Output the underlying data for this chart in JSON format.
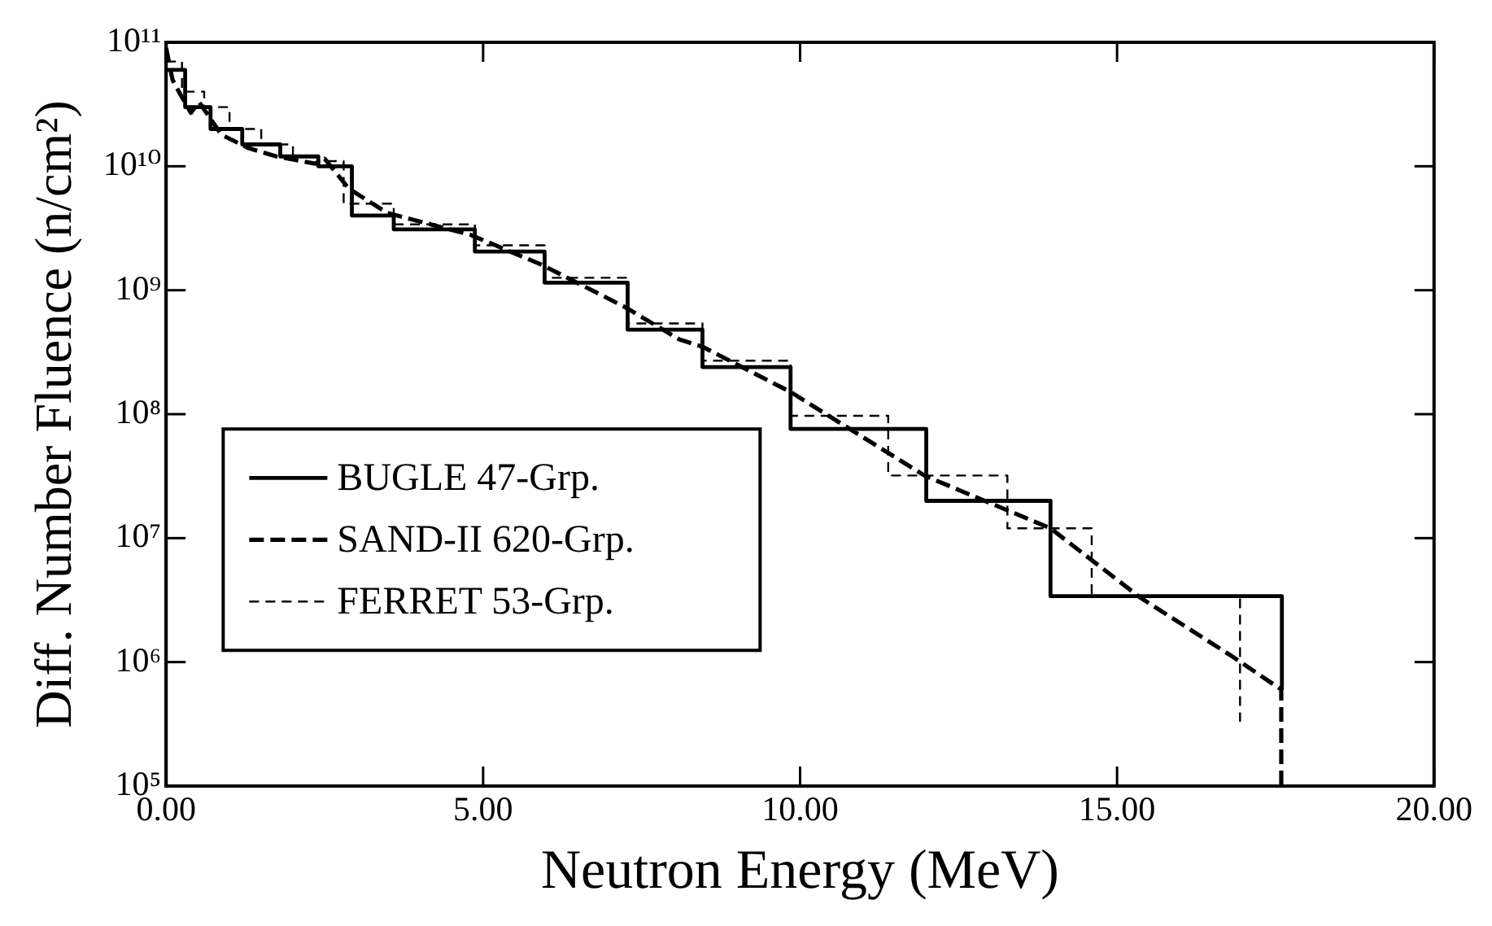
{
  "chart_data": {
    "type": "line",
    "xlabel": "Neutron Energy (MeV)",
    "ylabel": "Diff. Number Fluence (n/cm²)",
    "xlim": [
      0,
      20
    ],
    "xticks": [
      {
        "value": 0,
        "label": "0.00"
      },
      {
        "value": 5,
        "label": "5.00"
      },
      {
        "value": 10,
        "label": "10.00"
      },
      {
        "value": 15,
        "label": "15.00"
      },
      {
        "value": 20,
        "label": "20.00"
      }
    ],
    "ylim": [
      100000,
      100000000000
    ],
    "yticks": [
      {
        "value": 100000,
        "label": "10⁵"
      },
      {
        "value": 1000000,
        "label": "10⁶"
      },
      {
        "value": 10000000,
        "label": "10⁷"
      },
      {
        "value": 100000000,
        "label": "10⁸"
      },
      {
        "value": 1000000000,
        "label": "10⁹"
      },
      {
        "value": 10000000000,
        "label": "10¹⁰"
      },
      {
        "value": 100000000000,
        "label": "10¹¹"
      }
    ],
    "log": "y",
    "grid": false,
    "legend": "left",
    "marker": "none",
    "series": [
      {
        "name": "BUGLE 47-Grp.",
        "type": "step",
        "line_style": "solid",
        "color": "#000000",
        "x": [
          0,
          0.3,
          0.7,
          1.2,
          1.8,
          2.4,
          2.93,
          3.59,
          4.87,
          5.97,
          7.28,
          8.46,
          9.85,
          11.99,
          13.95,
          17.6,
          17.6
        ],
        "values": [
          60000000000,
          30000000000,
          20000000000,
          15000000000,
          12000000000,
          10000000000,
          4000000000,
          3100000000,
          2050000000,
          1150000000,
          480000000,
          240000000,
          76000000,
          20000000,
          3400000,
          3400000,
          600000
        ]
      },
      {
        "name": "SAND-II 620-Grp.",
        "type": "line",
        "line_style": "dashed",
        "color": "#000000",
        "x": [
          0,
          0.1,
          0.2,
          0.39,
          0.52,
          0.87,
          1.3,
          1.74,
          2.35,
          2.5,
          2.88,
          3.49,
          4.8,
          5.93,
          7.24,
          8.1,
          8.46,
          9.86,
          11.96,
          13.95,
          15.37,
          16.83,
          17.59,
          17.59
        ],
        "values": [
          90000000000,
          50000000000,
          40000000000,
          27000000000,
          33000000000,
          18000000000,
          14000000000,
          12000000000,
          10500000000,
          11500000000,
          6600000000,
          4200000000,
          2800000000,
          1600000000,
          730000000,
          400000000,
          350000000,
          150000000,
          32000000,
          12000000,
          3300000,
          1100000,
          600000,
          100000
        ]
      },
      {
        "name": "FERRET 53-Grp.",
        "type": "step",
        "line_style": "dashed",
        "color": "#000000",
        "x": [
          0,
          0.25,
          0.6,
          1,
          1.5,
          2,
          2.4,
          2.8,
          3.59,
          4.87,
          5.97,
          7.28,
          8.46,
          9.85,
          11.39,
          13.27,
          14.6,
          16.94,
          16.94
        ],
        "values": [
          70000000000,
          40000000000,
          30000000000,
          20000000000,
          15000000000,
          12000000000,
          11000000000,
          5000000000,
          3400000000,
          2300000000,
          1260000000,
          540000000,
          270000000,
          97000000,
          32000000,
          12000000,
          3400000,
          3400000,
          330000
        ]
      }
    ]
  }
}
